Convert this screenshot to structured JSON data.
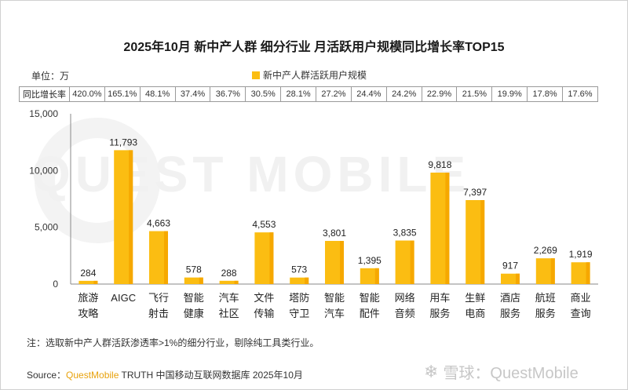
{
  "title": "2025年10月 新中产人群 细分行业 月活跃用户规模同比增长率TOP15",
  "unit_label": "单位：万",
  "growth_header": "同比增长率",
  "note": "注：选取新中产人群活跃渗透率>1%的细分行业，剔除纯工具类行业。",
  "source_prefix": "Source：",
  "source_brand": "QuestMobile",
  "source_rest": " TRUTH 中国移动互联网数据库 2025年10月",
  "footer_logo": "雪球：QuestMobile",
  "watermark_text": "QUEST MOBILE",
  "colors": {
    "bar": "#fbbd12",
    "bar_dark": "#f6a800",
    "axis": "#888888"
  },
  "chart_data": {
    "type": "bar",
    "title": "2025年10月 新中产人群 细分行业 月活跃用户规模同比增长率TOP15",
    "categories": [
      [
        "旅游",
        "攻略"
      ],
      [
        "AIGC"
      ],
      [
        "飞行",
        "射击"
      ],
      [
        "智能",
        "健康"
      ],
      [
        "汽车",
        "社区"
      ],
      [
        "文件",
        "传输"
      ],
      [
        "塔防",
        "守卫"
      ],
      [
        "智能",
        "汽车"
      ],
      [
        "智能",
        "配件"
      ],
      [
        "网络",
        "音频"
      ],
      [
        "用车",
        "服务"
      ],
      [
        "生鲜",
        "电商"
      ],
      [
        "酒店",
        "服务"
      ],
      [
        "航班",
        "服务"
      ],
      [
        "商业",
        "查询"
      ]
    ],
    "series": [
      {
        "name": "新中产人群活跃用户规模",
        "values": [
          284,
          11793,
          4663,
          578,
          288,
          4553,
          573,
          3801,
          1395,
          3835,
          9818,
          7397,
          917,
          2269,
          1919
        ],
        "labels": [
          "284",
          "11,793",
          "4,663",
          "578",
          "288",
          "4,553",
          "573",
          "3,801",
          "1,395",
          "3,835",
          "9,818",
          "7,397",
          "917",
          "2,269",
          "1,919"
        ]
      }
    ],
    "growth_rates": [
      "420.0%",
      "165.1%",
      "48.1%",
      "37.4%",
      "36.7%",
      "30.5%",
      "28.1%",
      "27.2%",
      "24.4%",
      "24.2%",
      "22.9%",
      "21.5%",
      "19.9%",
      "17.8%",
      "17.6%"
    ],
    "ylim": [
      0,
      15000
    ],
    "yticks": [
      0,
      5000,
      10000,
      15000
    ],
    "ytick_labels": [
      "0",
      "5,000",
      "10,000",
      "15,000"
    ],
    "legend_position": "top-center"
  }
}
